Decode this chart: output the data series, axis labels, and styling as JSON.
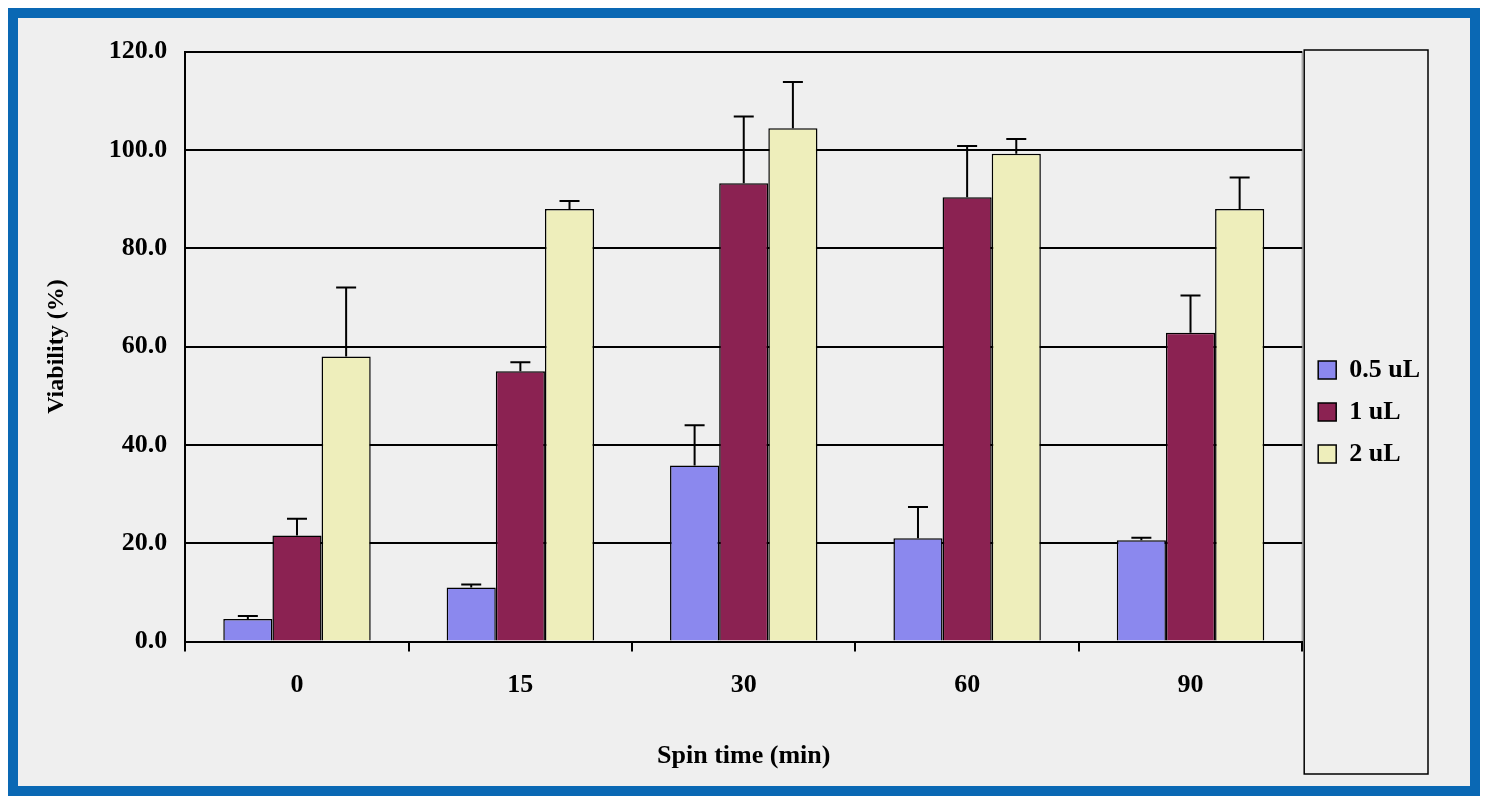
{
  "chart_data": {
    "type": "bar",
    "xlabel": "Spin time (min)",
    "ylabel": "Viability (%)",
    "categories": [
      "0",
      "15",
      "30",
      "60",
      "90"
    ],
    "series": [
      {
        "name": "0.5 uL",
        "color": "#8b88ee",
        "values": [
          4.6,
          11.0,
          35.8,
          21.0,
          20.6
        ],
        "errors": [
          [
            4.6,
            5.2
          ],
          [
            11.0,
            11.6
          ],
          [
            35.8,
            44.0
          ],
          [
            21.0,
            27.4
          ],
          [
            20.6,
            21.1
          ]
        ]
      },
      {
        "name": "1 uL",
        "color": "#8b2252",
        "values": [
          21.6,
          55.0,
          93.2,
          90.4,
          62.8
        ],
        "errors": [
          [
            21.6,
            25.0
          ],
          [
            55.0,
            56.8
          ],
          [
            93.2,
            106.8
          ],
          [
            90.4,
            100.8
          ],
          [
            62.8,
            70.4
          ]
        ]
      },
      {
        "name": "2 uL",
        "color": "#eeeebb",
        "values": [
          58.0,
          88.0,
          104.4,
          99.2,
          88.0
        ],
        "errors": [
          [
            58.0,
            72.0
          ],
          [
            88.0,
            89.6
          ],
          [
            104.4,
            113.8
          ],
          [
            99.2,
            102.2
          ],
          [
            88.0,
            94.4
          ]
        ]
      }
    ],
    "ylim": [
      0,
      120
    ],
    "yticks": [
      {
        "value": 0,
        "label": "0.0"
      },
      {
        "value": 20,
        "label": "20.0"
      },
      {
        "value": 40,
        "label": "40.0"
      },
      {
        "value": 60,
        "label": "60.0"
      },
      {
        "value": 80,
        "label": "80.0"
      },
      {
        "value": 100,
        "label": "100.0"
      },
      {
        "value": 120,
        "label": "120.0"
      }
    ],
    "grid": "y",
    "legend": "right"
  }
}
